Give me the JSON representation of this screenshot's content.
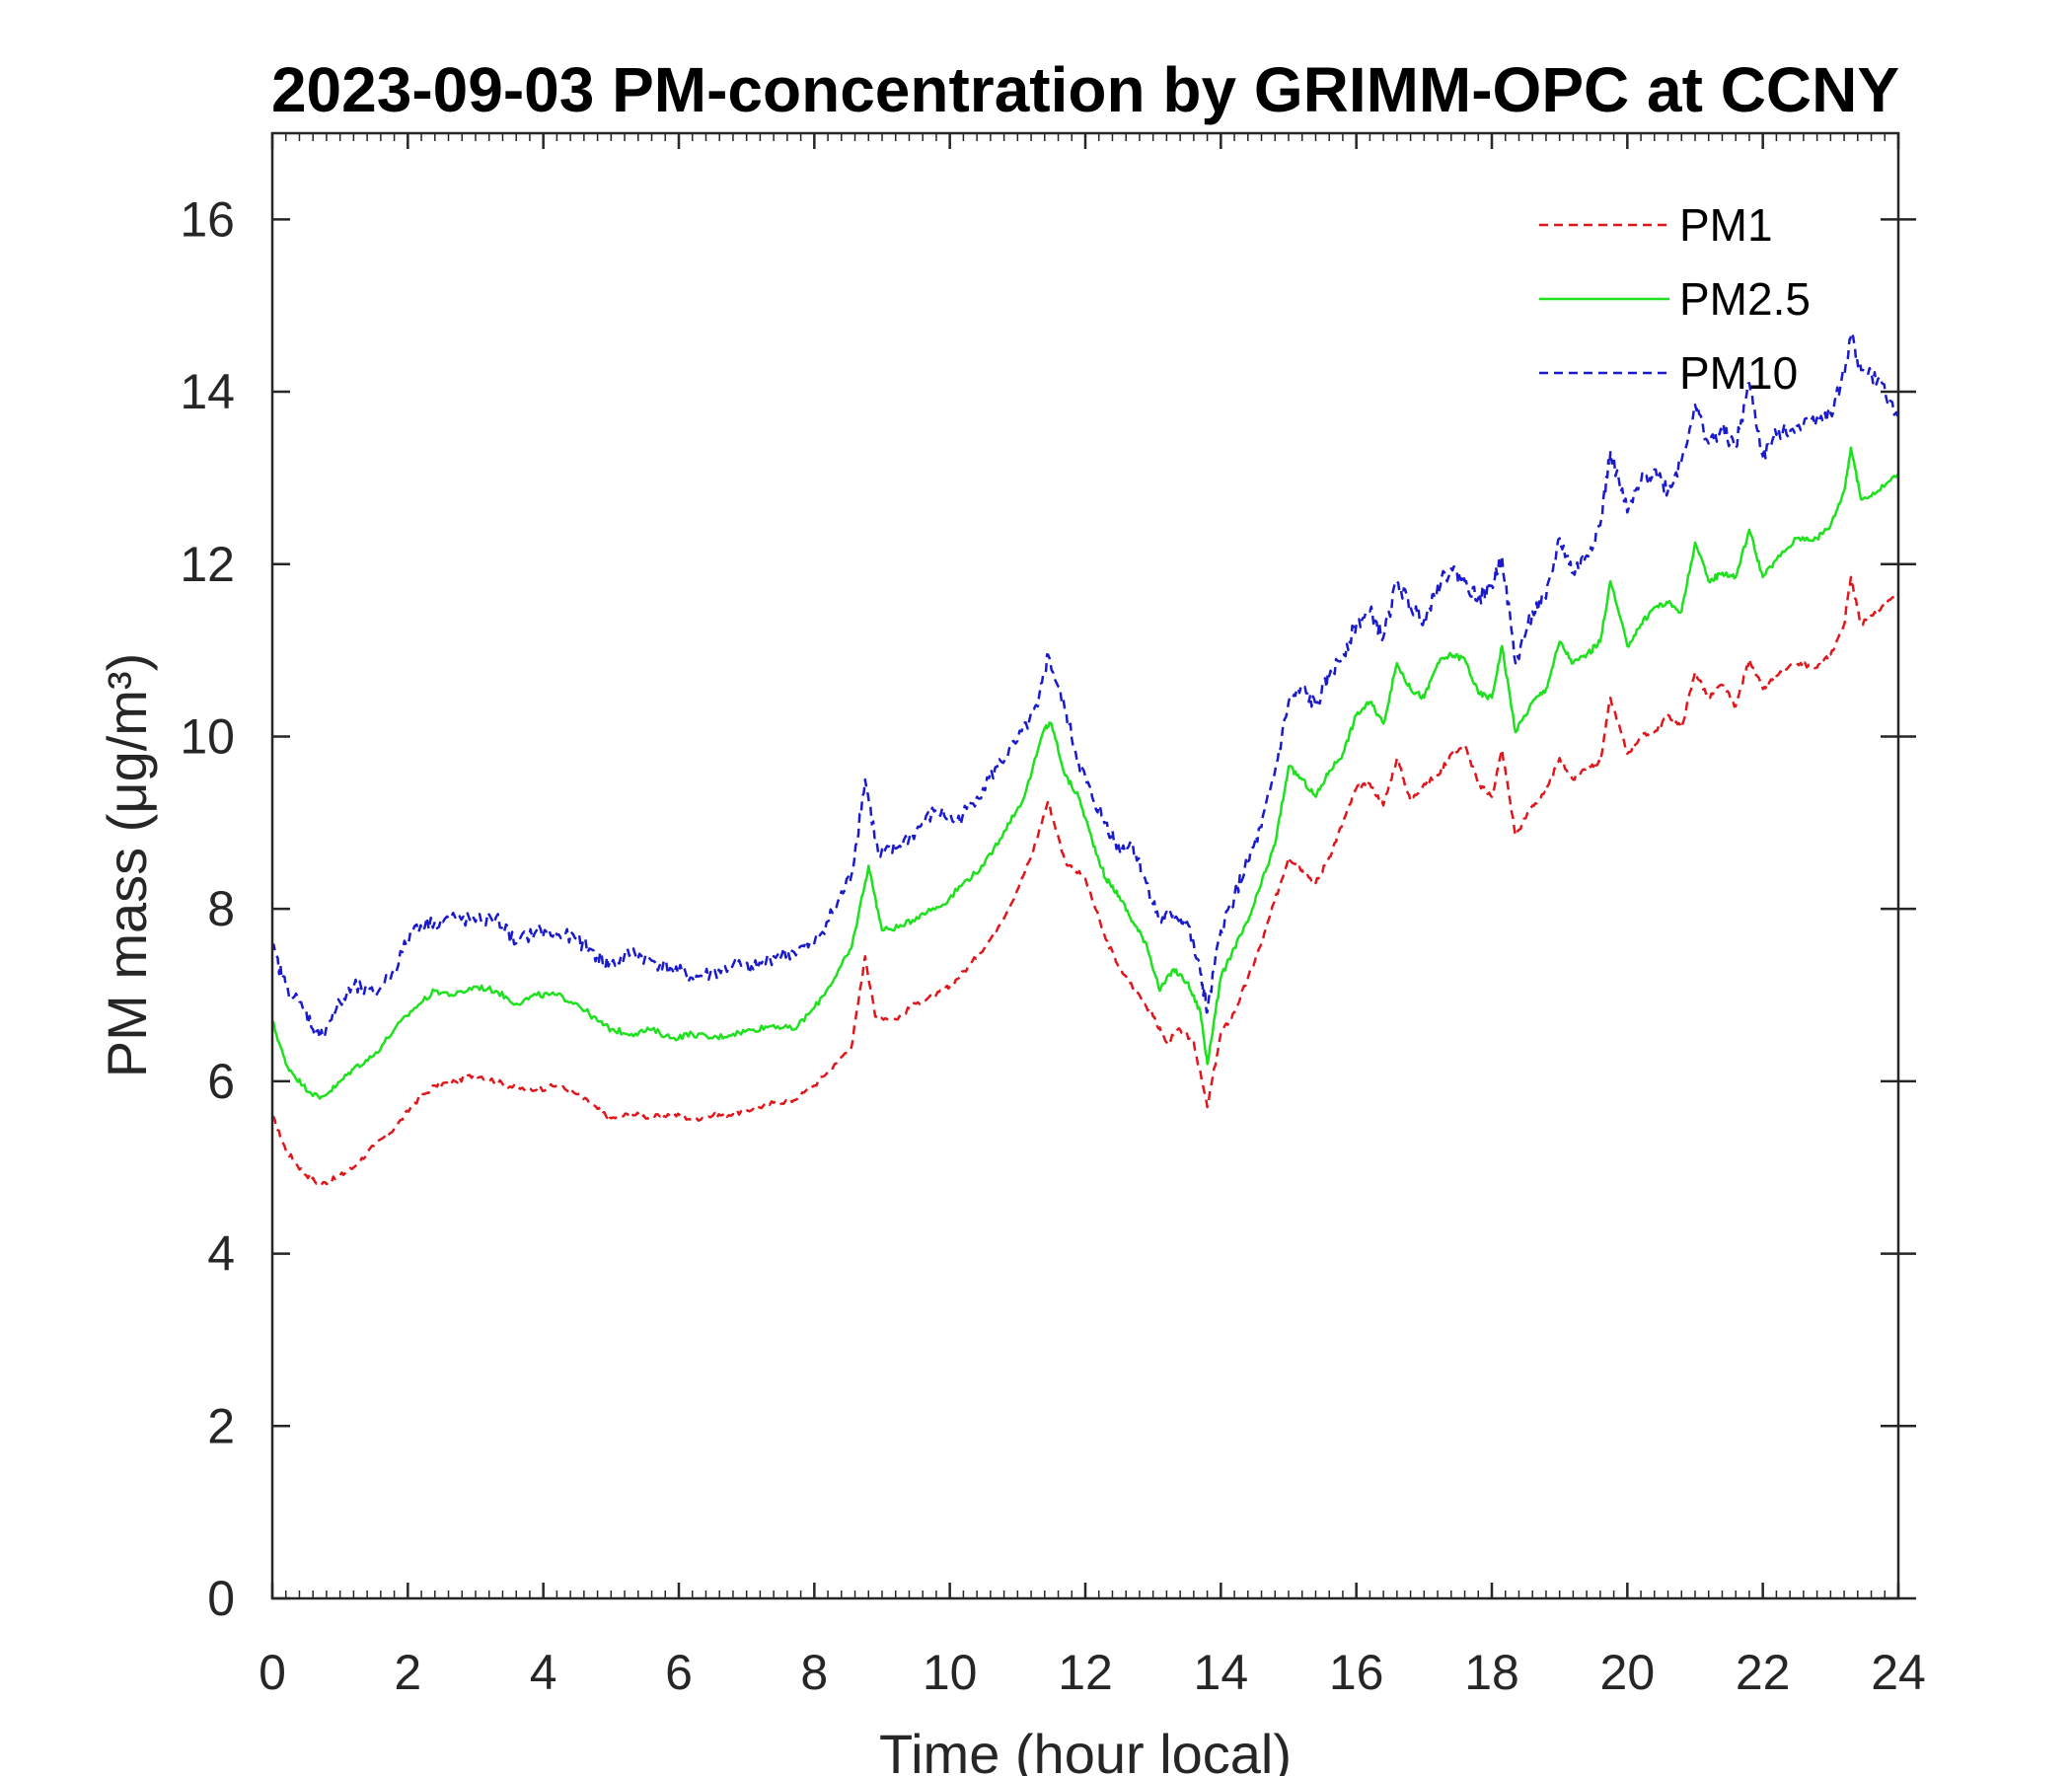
{
  "chart_data": {
    "type": "line",
    "title": "2023-09-03 PM-concentration by GRIMM-OPC at CCNY",
    "xlabel": "Time (hour local)",
    "ylabel": "PM mass (μg/m³)",
    "xlim": [
      0,
      24
    ],
    "ylim": [
      0,
      17
    ],
    "xticks": [
      "0",
      "2",
      "4",
      "6",
      "8",
      "10",
      "12",
      "14",
      "16",
      "18",
      "20",
      "22",
      "24"
    ],
    "yticks": [
      "0",
      "2",
      "4",
      "6",
      "8",
      "10",
      "12",
      "14",
      "16"
    ],
    "grid": false,
    "legend_position": "top-right",
    "series": [
      {
        "name": "PM1",
        "color": "#e0161b",
        "style": "dashed",
        "points": [
          [
            0,
            5.6
          ],
          [
            0.2,
            5.2
          ],
          [
            0.45,
            4.95
          ],
          [
            0.7,
            4.8
          ],
          [
            0.95,
            4.88
          ],
          [
            1.2,
            5.0
          ],
          [
            1.5,
            5.25
          ],
          [
            1.8,
            5.45
          ],
          [
            2.1,
            5.75
          ],
          [
            2.4,
            5.95
          ],
          [
            2.7,
            6.0
          ],
          [
            3.0,
            6.08
          ],
          [
            3.3,
            6.0
          ],
          [
            3.6,
            5.92
          ],
          [
            3.9,
            5.9
          ],
          [
            4.2,
            5.95
          ],
          [
            4.5,
            5.85
          ],
          [
            4.8,
            5.68
          ],
          [
            5.0,
            5.57
          ],
          [
            5.3,
            5.62
          ],
          [
            5.6,
            5.58
          ],
          [
            5.9,
            5.62
          ],
          [
            6.2,
            5.56
          ],
          [
            6.5,
            5.6
          ],
          [
            6.8,
            5.62
          ],
          [
            7.1,
            5.68
          ],
          [
            7.4,
            5.75
          ],
          [
            7.7,
            5.78
          ],
          [
            8.0,
            5.95
          ],
          [
            8.3,
            6.2
          ],
          [
            8.55,
            6.4
          ],
          [
            8.75,
            7.45
          ],
          [
            8.9,
            6.75
          ],
          [
            9.2,
            6.72
          ],
          [
            9.5,
            6.9
          ],
          [
            9.8,
            7.0
          ],
          [
            10.0,
            7.1
          ],
          [
            10.3,
            7.35
          ],
          [
            10.6,
            7.65
          ],
          [
            10.9,
            8.05
          ],
          [
            11.2,
            8.6
          ],
          [
            11.45,
            9.25
          ],
          [
            11.7,
            8.55
          ],
          [
            12.0,
            8.35
          ],
          [
            12.3,
            7.65
          ],
          [
            12.55,
            7.25
          ],
          [
            12.8,
            7.0
          ],
          [
            13.0,
            6.75
          ],
          [
            13.2,
            6.45
          ],
          [
            13.4,
            6.6
          ],
          [
            13.6,
            6.45
          ],
          [
            13.8,
            5.7
          ],
          [
            14.0,
            6.55
          ],
          [
            14.2,
            6.8
          ],
          [
            14.4,
            7.2
          ],
          [
            14.6,
            7.6
          ],
          [
            14.8,
            8.1
          ],
          [
            15.0,
            8.6
          ],
          [
            15.2,
            8.45
          ],
          [
            15.4,
            8.3
          ],
          [
            15.6,
            8.6
          ],
          [
            15.8,
            9.0
          ],
          [
            16.0,
            9.4
          ],
          [
            16.2,
            9.45
          ],
          [
            16.4,
            9.2
          ],
          [
            16.6,
            9.75
          ],
          [
            16.8,
            9.25
          ],
          [
            17.0,
            9.45
          ],
          [
            17.2,
            9.55
          ],
          [
            17.4,
            9.8
          ],
          [
            17.6,
            9.9
          ],
          [
            17.8,
            9.45
          ],
          [
            18.0,
            9.3
          ],
          [
            18.15,
            9.85
          ],
          [
            18.35,
            8.85
          ],
          [
            18.6,
            9.2
          ],
          [
            18.8,
            9.35
          ],
          [
            19.0,
            9.75
          ],
          [
            19.2,
            9.5
          ],
          [
            19.4,
            9.65
          ],
          [
            19.6,
            9.7
          ],
          [
            19.75,
            10.45
          ],
          [
            20.0,
            9.8
          ],
          [
            20.2,
            10.0
          ],
          [
            20.4,
            10.05
          ],
          [
            20.6,
            10.25
          ],
          [
            20.8,
            10.1
          ],
          [
            21.0,
            10.75
          ],
          [
            21.2,
            10.45
          ],
          [
            21.4,
            10.6
          ],
          [
            21.6,
            10.35
          ],
          [
            21.8,
            10.9
          ],
          [
            22.0,
            10.55
          ],
          [
            22.2,
            10.7
          ],
          [
            22.5,
            10.85
          ],
          [
            22.8,
            10.8
          ],
          [
            23.0,
            10.95
          ],
          [
            23.2,
            11.3
          ],
          [
            23.3,
            11.85
          ],
          [
            23.45,
            11.3
          ],
          [
            23.7,
            11.45
          ],
          [
            24.0,
            11.65
          ]
        ]
      },
      {
        "name": "PM2.5",
        "color": "#1ee11e",
        "style": "solid",
        "points": [
          [
            0,
            6.7
          ],
          [
            0.2,
            6.2
          ],
          [
            0.45,
            5.95
          ],
          [
            0.7,
            5.8
          ],
          [
            0.95,
            5.95
          ],
          [
            1.2,
            6.15
          ],
          [
            1.5,
            6.3
          ],
          [
            1.8,
            6.6
          ],
          [
            2.1,
            6.85
          ],
          [
            2.4,
            7.05
          ],
          [
            2.7,
            7.0
          ],
          [
            3.0,
            7.1
          ],
          [
            3.3,
            7.05
          ],
          [
            3.6,
            6.9
          ],
          [
            3.9,
            7.0
          ],
          [
            4.2,
            7.0
          ],
          [
            4.5,
            6.9
          ],
          [
            4.8,
            6.7
          ],
          [
            5.0,
            6.6
          ],
          [
            5.3,
            6.55
          ],
          [
            5.6,
            6.6
          ],
          [
            5.9,
            6.5
          ],
          [
            6.2,
            6.55
          ],
          [
            6.5,
            6.5
          ],
          [
            6.8,
            6.55
          ],
          [
            7.1,
            6.6
          ],
          [
            7.4,
            6.65
          ],
          [
            7.7,
            6.6
          ],
          [
            8.0,
            6.85
          ],
          [
            8.3,
            7.2
          ],
          [
            8.55,
            7.55
          ],
          [
            8.8,
            8.5
          ],
          [
            9.0,
            7.75
          ],
          [
            9.3,
            7.8
          ],
          [
            9.6,
            7.95
          ],
          [
            9.9,
            8.05
          ],
          [
            10.2,
            8.3
          ],
          [
            10.5,
            8.5
          ],
          [
            10.8,
            8.9
          ],
          [
            11.1,
            9.3
          ],
          [
            11.4,
            10.1
          ],
          [
            11.5,
            10.15
          ],
          [
            11.7,
            9.55
          ],
          [
            11.9,
            9.3
          ],
          [
            12.1,
            8.8
          ],
          [
            12.3,
            8.35
          ],
          [
            12.5,
            8.15
          ],
          [
            12.7,
            7.85
          ],
          [
            12.9,
            7.6
          ],
          [
            13.1,
            7.05
          ],
          [
            13.3,
            7.3
          ],
          [
            13.5,
            7.15
          ],
          [
            13.7,
            6.8
          ],
          [
            13.8,
            6.2
          ],
          [
            14.0,
            7.2
          ],
          [
            14.2,
            7.55
          ],
          [
            14.4,
            7.85
          ],
          [
            14.6,
            8.3
          ],
          [
            14.8,
            8.75
          ],
          [
            15.0,
            9.65
          ],
          [
            15.2,
            9.5
          ],
          [
            15.4,
            9.3
          ],
          [
            15.6,
            9.6
          ],
          [
            15.8,
            9.8
          ],
          [
            16.0,
            10.25
          ],
          [
            16.2,
            10.4
          ],
          [
            16.4,
            10.15
          ],
          [
            16.6,
            10.85
          ],
          [
            16.8,
            10.55
          ],
          [
            17.0,
            10.45
          ],
          [
            17.2,
            10.85
          ],
          [
            17.4,
            10.95
          ],
          [
            17.6,
            10.9
          ],
          [
            17.8,
            10.5
          ],
          [
            18.0,
            10.45
          ],
          [
            18.15,
            11.05
          ],
          [
            18.35,
            10.05
          ],
          [
            18.6,
            10.4
          ],
          [
            18.8,
            10.55
          ],
          [
            19.0,
            11.1
          ],
          [
            19.2,
            10.85
          ],
          [
            19.4,
            10.95
          ],
          [
            19.6,
            11.1
          ],
          [
            19.75,
            11.8
          ],
          [
            20.0,
            11.05
          ],
          [
            20.2,
            11.3
          ],
          [
            20.4,
            11.5
          ],
          [
            20.6,
            11.55
          ],
          [
            20.8,
            11.45
          ],
          [
            21.0,
            12.25
          ],
          [
            21.2,
            11.8
          ],
          [
            21.4,
            11.9
          ],
          [
            21.6,
            11.85
          ],
          [
            21.8,
            12.4
          ],
          [
            22.0,
            11.85
          ],
          [
            22.2,
            12.05
          ],
          [
            22.5,
            12.3
          ],
          [
            22.8,
            12.3
          ],
          [
            23.0,
            12.45
          ],
          [
            23.2,
            12.85
          ],
          [
            23.3,
            13.35
          ],
          [
            23.45,
            12.75
          ],
          [
            23.7,
            12.85
          ],
          [
            24.0,
            13.05
          ]
        ]
      },
      {
        "name": "PM10",
        "color": "#1a1acd",
        "style": "dashed",
        "points": [
          [
            0,
            7.55
          ],
          [
            0.2,
            7.1
          ],
          [
            0.45,
            6.85
          ],
          [
            0.7,
            6.5
          ],
          [
            0.95,
            6.85
          ],
          [
            1.2,
            7.1
          ],
          [
            1.5,
            7.0
          ],
          [
            1.8,
            7.3
          ],
          [
            2.1,
            7.8
          ],
          [
            2.4,
            7.85
          ],
          [
            2.7,
            7.9
          ],
          [
            3.0,
            7.85
          ],
          [
            3.3,
            7.9
          ],
          [
            3.6,
            7.6
          ],
          [
            3.9,
            7.75
          ],
          [
            4.2,
            7.7
          ],
          [
            4.5,
            7.65
          ],
          [
            4.8,
            7.45
          ],
          [
            5.0,
            7.35
          ],
          [
            5.3,
            7.5
          ],
          [
            5.6,
            7.4
          ],
          [
            5.9,
            7.3
          ],
          [
            6.2,
            7.2
          ],
          [
            6.5,
            7.25
          ],
          [
            6.8,
            7.35
          ],
          [
            7.1,
            7.3
          ],
          [
            7.4,
            7.45
          ],
          [
            7.7,
            7.5
          ],
          [
            8.0,
            7.6
          ],
          [
            8.3,
            8.0
          ],
          [
            8.55,
            8.4
          ],
          [
            8.75,
            9.5
          ],
          [
            8.95,
            8.6
          ],
          [
            9.2,
            8.7
          ],
          [
            9.5,
            8.9
          ],
          [
            9.8,
            9.15
          ],
          [
            10.1,
            9.0
          ],
          [
            10.4,
            9.3
          ],
          [
            10.7,
            9.65
          ],
          [
            11.0,
            9.95
          ],
          [
            11.3,
            10.35
          ],
          [
            11.45,
            10.95
          ],
          [
            11.7,
            10.3
          ],
          [
            11.9,
            9.7
          ],
          [
            12.1,
            9.3
          ],
          [
            12.3,
            9.0
          ],
          [
            12.5,
            8.7
          ],
          [
            12.7,
            8.75
          ],
          [
            12.9,
            8.3
          ],
          [
            13.1,
            7.85
          ],
          [
            13.3,
            7.95
          ],
          [
            13.5,
            7.85
          ],
          [
            13.7,
            7.25
          ],
          [
            13.8,
            6.8
          ],
          [
            14.0,
            7.75
          ],
          [
            14.2,
            8.15
          ],
          [
            14.4,
            8.55
          ],
          [
            14.6,
            8.95
          ],
          [
            14.8,
            9.6
          ],
          [
            15.0,
            10.4
          ],
          [
            15.2,
            10.55
          ],
          [
            15.4,
            10.35
          ],
          [
            15.6,
            10.7
          ],
          [
            15.8,
            10.95
          ],
          [
            16.0,
            11.3
          ],
          [
            16.2,
            11.45
          ],
          [
            16.4,
            11.15
          ],
          [
            16.6,
            11.8
          ],
          [
            16.8,
            11.5
          ],
          [
            17.0,
            11.35
          ],
          [
            17.2,
            11.75
          ],
          [
            17.4,
            11.95
          ],
          [
            17.6,
            11.8
          ],
          [
            17.8,
            11.6
          ],
          [
            18.0,
            11.75
          ],
          [
            18.15,
            12.1
          ],
          [
            18.35,
            10.85
          ],
          [
            18.6,
            11.45
          ],
          [
            18.8,
            11.6
          ],
          [
            19.0,
            12.3
          ],
          [
            19.2,
            11.9
          ],
          [
            19.4,
            12.1
          ],
          [
            19.6,
            12.45
          ],
          [
            19.75,
            13.3
          ],
          [
            20.0,
            12.6
          ],
          [
            20.2,
            12.95
          ],
          [
            20.4,
            13.1
          ],
          [
            20.6,
            12.85
          ],
          [
            20.8,
            13.2
          ],
          [
            21.0,
            13.85
          ],
          [
            21.2,
            13.4
          ],
          [
            21.4,
            13.55
          ],
          [
            21.6,
            13.35
          ],
          [
            21.8,
            14.1
          ],
          [
            22.0,
            13.25
          ],
          [
            22.2,
            13.5
          ],
          [
            22.5,
            13.6
          ],
          [
            22.8,
            13.7
          ],
          [
            23.0,
            13.75
          ],
          [
            23.2,
            14.2
          ],
          [
            23.3,
            14.65
          ],
          [
            23.45,
            14.25
          ],
          [
            23.7,
            14.15
          ],
          [
            24.0,
            13.7
          ]
        ]
      }
    ]
  }
}
